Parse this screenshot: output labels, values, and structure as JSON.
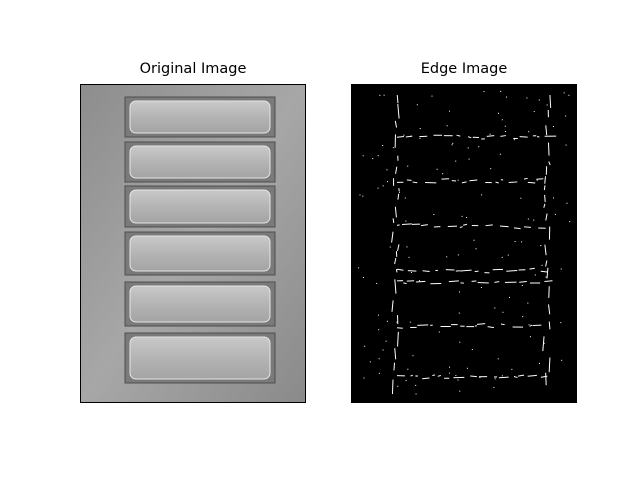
{
  "figure": {
    "panels": [
      {
        "title": "Original Image",
        "image": "grayscale photo of six rectangular filled trays in a metal mold"
      },
      {
        "title": "Edge Image",
        "image": "binary edge map: white edge pixels on black background"
      }
    ],
    "colors": {
      "background": "#ffffff",
      "edge_bg": "#000000",
      "edge_fg": "#ffffff"
    }
  }
}
